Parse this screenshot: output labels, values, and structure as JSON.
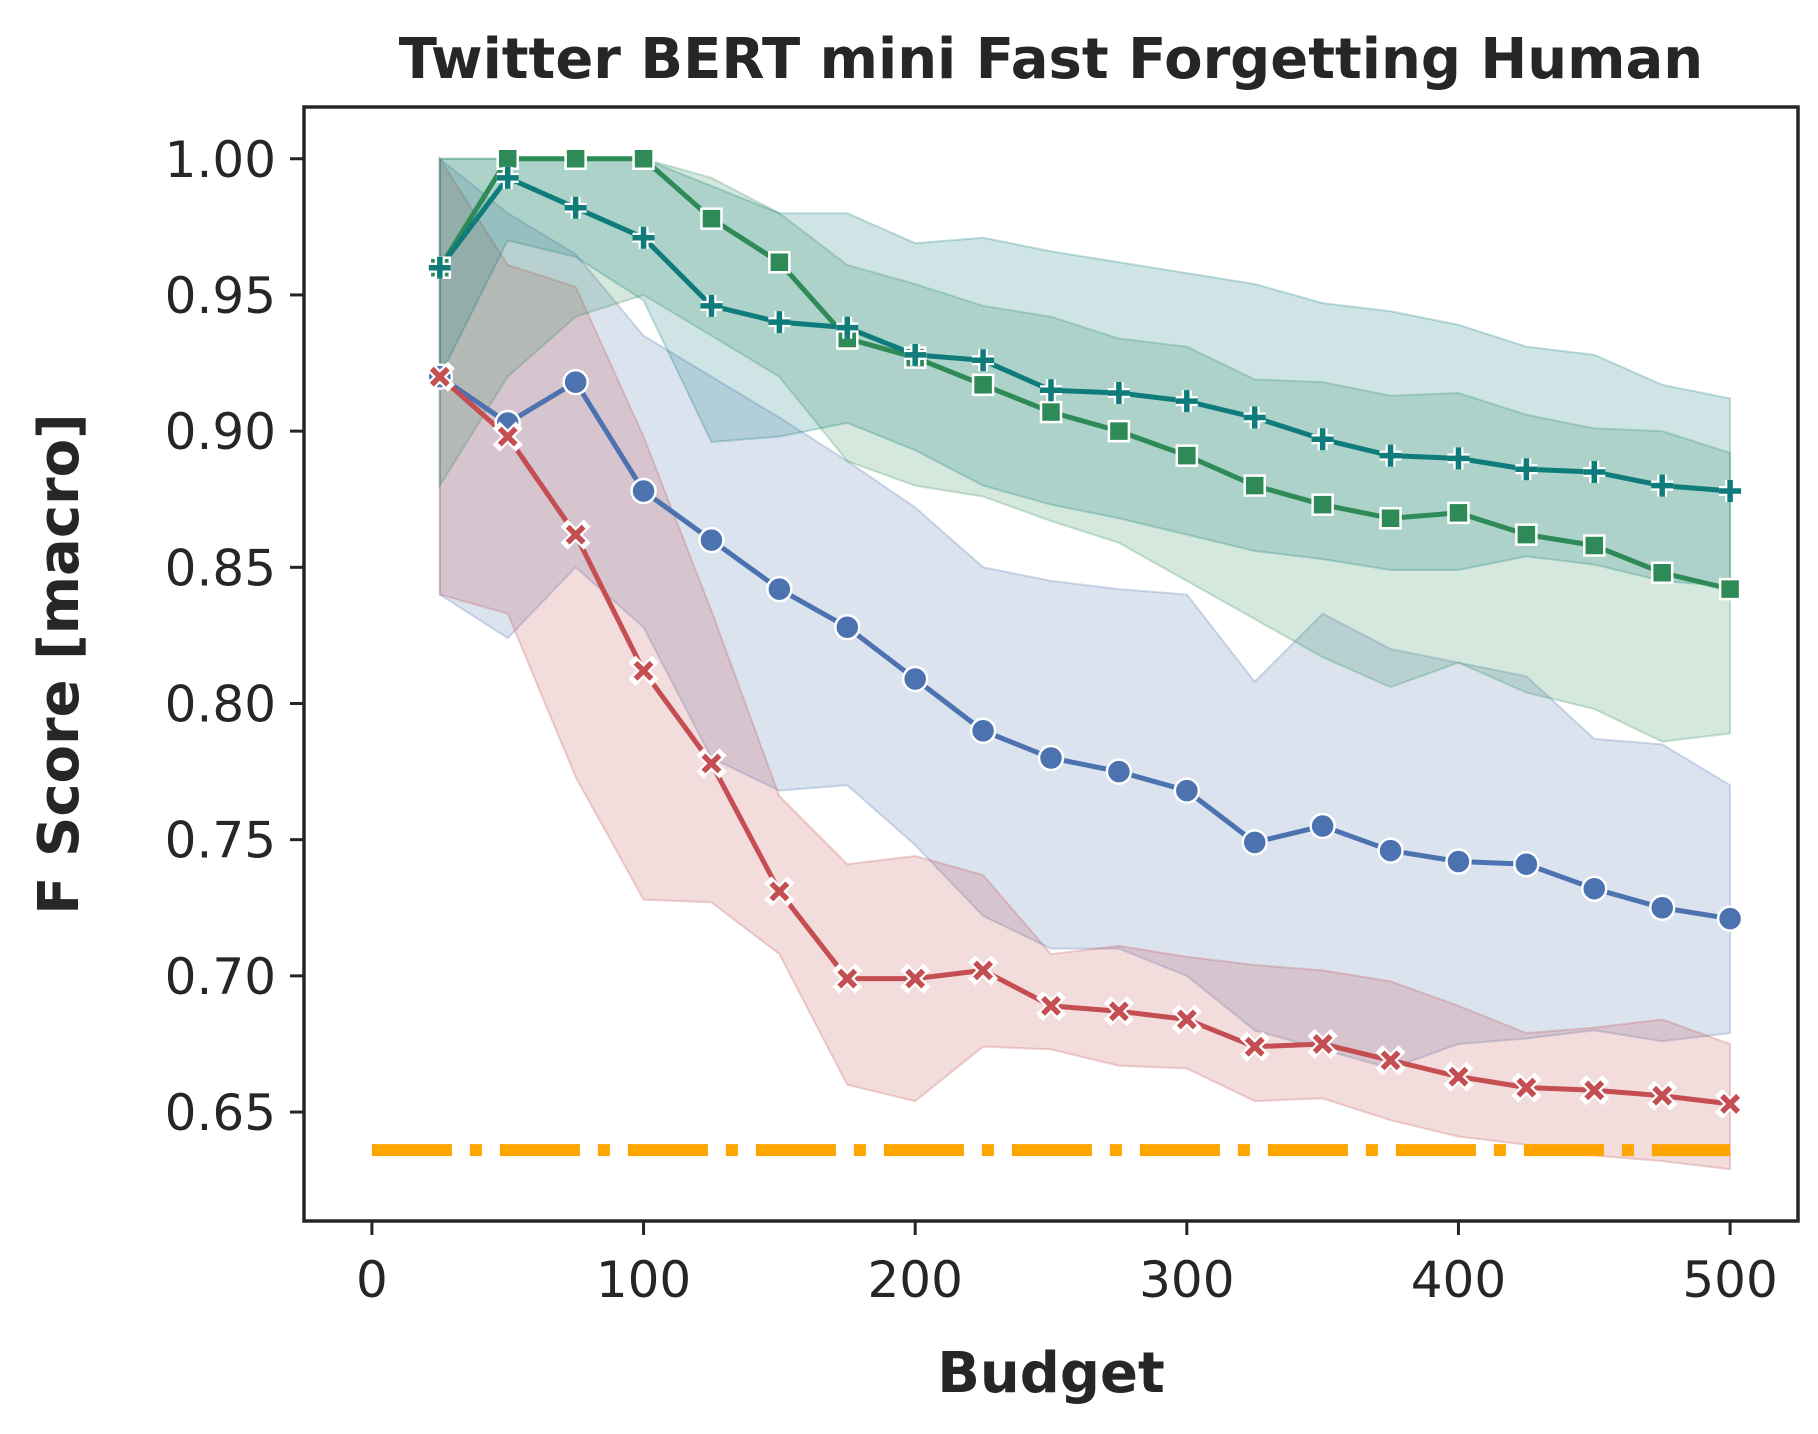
{
  "chart_data": {
    "type": "line",
    "title": "Twitter BERT mini Fast Forgetting Human",
    "xlabel": "Budget",
    "ylabel": "F Score [macro]",
    "xlim": [
      -25,
      525
    ],
    "ylim": [
      0.61,
      1.019
    ],
    "xticks": [
      0,
      100,
      200,
      300,
      400,
      500
    ],
    "xtick_labels": [
      "0",
      "100",
      "200",
      "300",
      "400",
      "500"
    ],
    "yticks": [
      0.65,
      0.7,
      0.75,
      0.8,
      0.85,
      0.9,
      0.95,
      1.0
    ],
    "ytick_labels": [
      "0.65",
      "0.70",
      "0.75",
      "0.80",
      "0.85",
      "0.90",
      "0.95",
      "1.00"
    ],
    "grid": false,
    "x": [
      25,
      50,
      75,
      100,
      125,
      150,
      175,
      200,
      225,
      250,
      275,
      300,
      325,
      350,
      375,
      400,
      425,
      450,
      475,
      500
    ],
    "series": [
      {
        "color": "#4c72b0",
        "marker": "circle",
        "values": [
          0.92,
          0.903,
          0.918,
          0.878,
          0.86,
          0.842,
          0.828,
          0.809,
          0.79,
          0.78,
          0.775,
          0.768,
          0.749,
          0.755,
          0.746,
          0.742,
          0.741,
          0.732,
          0.725,
          0.721
        ],
        "lower": [
          0.84,
          0.824,
          0.85,
          0.828,
          0.78,
          0.768,
          0.77,
          0.748,
          0.722,
          0.71,
          0.71,
          0.7,
          0.68,
          0.673,
          0.666,
          0.675,
          0.677,
          0.68,
          0.676,
          0.679
        ],
        "upper": [
          1.0,
          0.98,
          0.965,
          0.935,
          0.92,
          0.905,
          0.889,
          0.872,
          0.85,
          0.845,
          0.842,
          0.84,
          0.808,
          0.833,
          0.82,
          0.815,
          0.81,
          0.787,
          0.785,
          0.77
        ]
      },
      {
        "color": "#c44e52",
        "marker": "x",
        "values": [
          0.92,
          0.898,
          0.862,
          0.812,
          0.778,
          0.731,
          0.699,
          0.699,
          0.702,
          0.689,
          0.687,
          0.684,
          0.674,
          0.675,
          0.669,
          0.663,
          0.659,
          0.658,
          0.656,
          0.653
        ],
        "lower": [
          0.84,
          0.833,
          0.773,
          0.728,
          0.727,
          0.708,
          0.66,
          0.654,
          0.674,
          0.673,
          0.667,
          0.666,
          0.654,
          0.655,
          0.647,
          0.641,
          0.638,
          0.634,
          0.632,
          0.629
        ],
        "upper": [
          1.0,
          0.961,
          0.953,
          0.898,
          0.834,
          0.766,
          0.741,
          0.744,
          0.737,
          0.708,
          0.711,
          0.707,
          0.704,
          0.702,
          0.698,
          0.689,
          0.679,
          0.681,
          0.684,
          0.675
        ]
      },
      {
        "color": "#2e8b57",
        "marker": "square",
        "values": [
          0.96,
          1.0,
          1.0,
          1.0,
          0.978,
          0.962,
          0.934,
          0.927,
          0.917,
          0.907,
          0.9,
          0.891,
          0.88,
          0.873,
          0.868,
          0.87,
          0.862,
          0.858,
          0.848,
          0.842
        ],
        "lower": [
          0.88,
          0.92,
          0.942,
          0.95,
          0.935,
          0.92,
          0.889,
          0.88,
          0.876,
          0.867,
          0.859,
          0.845,
          0.831,
          0.817,
          0.806,
          0.815,
          0.804,
          0.798,
          0.786,
          0.789
        ],
        "upper": [
          1.0,
          1.0,
          1.0,
          1.0,
          0.993,
          0.98,
          0.961,
          0.954,
          0.946,
          0.942,
          0.934,
          0.931,
          0.919,
          0.918,
          0.913,
          0.914,
          0.906,
          0.901,
          0.9,
          0.892
        ]
      },
      {
        "color": "#0f7b7b",
        "marker": "plus",
        "values": [
          0.96,
          0.993,
          0.982,
          0.971,
          0.946,
          0.94,
          0.938,
          0.928,
          0.926,
          0.915,
          0.914,
          0.911,
          0.905,
          0.897,
          0.891,
          0.89,
          0.886,
          0.885,
          0.88,
          0.878
        ],
        "lower": [
          0.92,
          0.97,
          0.964,
          0.948,
          0.896,
          0.898,
          0.903,
          0.893,
          0.88,
          0.873,
          0.868,
          0.862,
          0.856,
          0.853,
          0.849,
          0.849,
          0.854,
          0.851,
          0.845,
          0.843
        ],
        "upper": [
          1.0,
          1.0,
          1.0,
          1.0,
          0.99,
          0.98,
          0.98,
          0.969,
          0.971,
          0.966,
          0.962,
          0.958,
          0.954,
          0.947,
          0.944,
          0.939,
          0.931,
          0.928,
          0.917,
          0.912
        ]
      }
    ],
    "reference_line": {
      "value": 0.636,
      "x_range": [
        0,
        500
      ],
      "color": "#ffa500",
      "style": "dashdot"
    }
  }
}
